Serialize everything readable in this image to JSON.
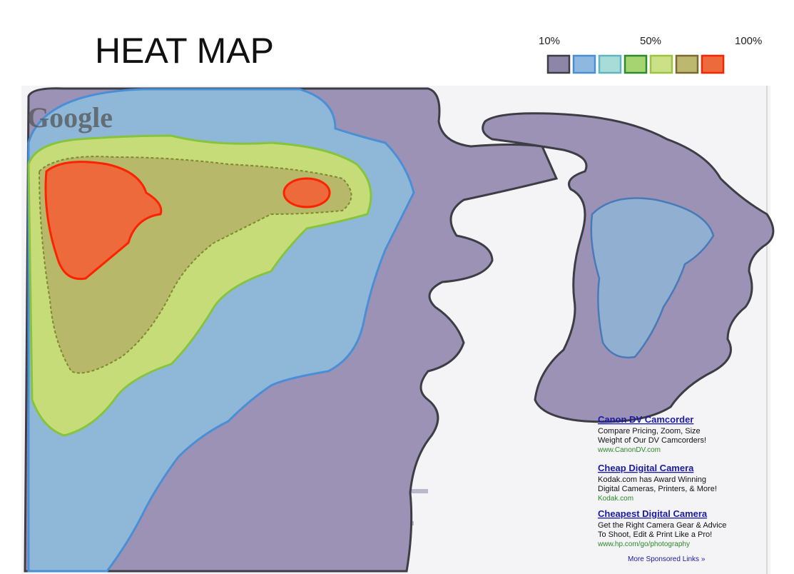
{
  "header": {
    "title": "HEAT MAP"
  },
  "legend": {
    "labels": [
      "10%",
      "50%",
      "100%"
    ]
  },
  "page": {
    "logo": "Google",
    "ads": [
      {
        "title": "Canon DV Camcorder",
        "lines": [
          "Compare Pricing, Zoom, Size",
          "Weight of Our DV Camcorders!"
        ],
        "url": "www.CanonDV.com"
      },
      {
        "title": "Cheap Digital Camera",
        "lines": [
          "Kodak.com has Award Winning",
          "Digital Cameras, Printers, & More!"
        ],
        "url": "Kodak.com"
      },
      {
        "title": "Cheapest Digital Camera",
        "lines": [
          "Get the Right Camera Gear & Advice",
          "To Shoot, Edit & Print Like a Pro!"
        ],
        "url": "www.hp.com/go/photography"
      }
    ],
    "more": "More Sponsored Links »"
  }
}
